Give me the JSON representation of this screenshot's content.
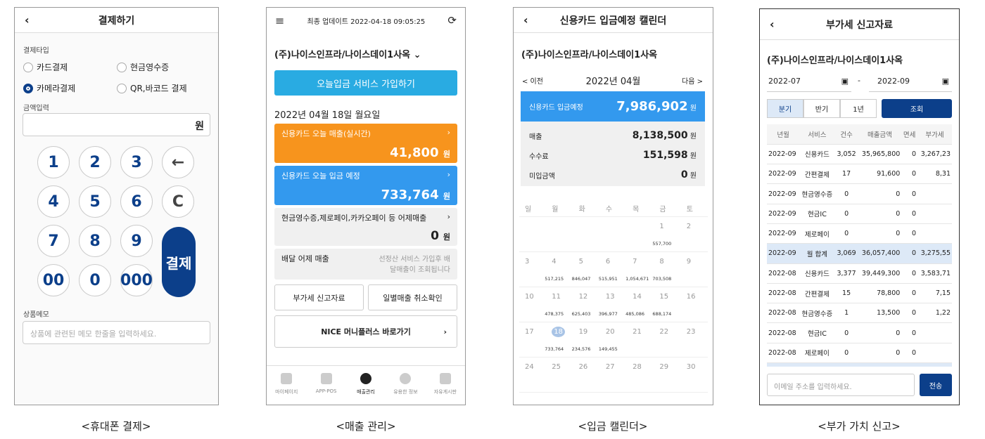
{
  "captions": [
    "<휴대폰 결제>",
    "<매출 관리>",
    "<입금 캘린더>",
    "<부가 가치 신고>"
  ],
  "p1": {
    "title": "결제하기",
    "payment_type_label": "결제타입",
    "options": [
      "카드결제",
      "현금영수증",
      "카메라결제",
      "QR,바코드 결제"
    ],
    "selected": "카메라결제",
    "amount_label": "금액입력",
    "amount_unit": "원",
    "keys": [
      "1",
      "2",
      "3",
      "←",
      "4",
      "5",
      "6",
      "C",
      "7",
      "8",
      "9",
      "00",
      "0",
      "000"
    ],
    "pay_label": "결제",
    "memo_label": "상품메모",
    "memo_placeholder": "상품에 관련된 메모 한줄을 입력하세요."
  },
  "p2": {
    "updated": "최종 업데이트 2022-04-18 09:05:25",
    "store": "(주)나이스인프라/나이스데이1사옥",
    "join_button": "오늘입금 서비스 가입하기",
    "date": "2022년 04월 18일 월요일",
    "today_sales": {
      "label": "신용카드 오늘 매출(실시간)",
      "value": "41,800",
      "unit": "원",
      "color": "#f7941d"
    },
    "today_deposit": {
      "label": "신용카드 오늘 입금 예정",
      "value": "733,764",
      "unit": "원",
      "color": "#3399ee"
    },
    "yesterday": {
      "label": "현금영수증,제로페이,카카오페이 등 어제매출",
      "value": "0",
      "unit": "원"
    },
    "delivery": {
      "label": "배달 어제 매출",
      "note": "선정산 서비스 가입후 배달매출이 조회됩니다"
    },
    "vat_button": "부가세 신고자료",
    "cancel_button": "일별매출 취소확인",
    "money_button": "NICE 머니플러스 바로가기",
    "nav": [
      "마이페이지",
      "APP-POS",
      "매출관리",
      "유용한 정보",
      "자유게시판"
    ],
    "nav_active": "매출관리"
  },
  "p3": {
    "title": "신용카드 입금예정 캘린더",
    "store": "(주)나이스인프라/나이스데이1사옥",
    "prev": "< 이전",
    "month": "2022년 04월",
    "next": "다음 >",
    "expected_label": "신용카드 입금예정",
    "expected_value": "7,986,902",
    "unit": "원",
    "rows": [
      {
        "label": "매출",
        "value": "8,138,500"
      },
      {
        "label": "수수료",
        "value": "151,598"
      },
      {
        "label": "미입금액",
        "value": "0"
      }
    ],
    "weekdays": [
      "일",
      "월",
      "화",
      "수",
      "목",
      "금",
      "토"
    ],
    "weeks": [
      [
        null,
        null,
        null,
        null,
        null,
        [
          "1",
          "557,700"
        ],
        [
          "2",
          ""
        ]
      ],
      [
        [
          "3",
          ""
        ],
        [
          "4",
          "517,215"
        ],
        [
          "5",
          "846,047"
        ],
        [
          "6",
          "515,951"
        ],
        [
          "7",
          "1,054,671"
        ],
        [
          "8",
          "703,508"
        ],
        [
          "9",
          ""
        ]
      ],
      [
        [
          "10",
          ""
        ],
        [
          "11",
          "478,375"
        ],
        [
          "12",
          "625,403"
        ],
        [
          "13",
          "396,977"
        ],
        [
          "14",
          "485,086"
        ],
        [
          "15",
          "688,174"
        ],
        [
          "16",
          ""
        ]
      ],
      [
        [
          "17",
          ""
        ],
        [
          "18",
          "733,764"
        ],
        [
          "19",
          "234,576"
        ],
        [
          "20",
          "149,455"
        ],
        [
          "21",
          ""
        ],
        [
          "22",
          ""
        ],
        [
          "23",
          ""
        ]
      ],
      [
        [
          "24",
          ""
        ],
        [
          "25",
          ""
        ],
        [
          "26",
          ""
        ],
        [
          "27",
          ""
        ],
        [
          "28",
          ""
        ],
        [
          "29",
          ""
        ],
        [
          "30",
          ""
        ]
      ]
    ],
    "today": "18"
  },
  "p4": {
    "title": "부가세 신고자료",
    "store": "(주)나이스인프라/나이스데이1사옥",
    "from": "2022-07",
    "to": "2022-09",
    "sep": "-",
    "tabs": [
      "분기",
      "반기",
      "1년"
    ],
    "active_tab": "분기",
    "search": "조회",
    "columns": [
      "년월",
      "서비스",
      "건수",
      "매출금액",
      "면세",
      "부가세"
    ],
    "rows": [
      [
        "2022-09",
        "신용카드",
        "3,052",
        "35,965,800",
        "0",
        "3,267,23"
      ],
      [
        "2022-09",
        "간편결제",
        "17",
        "91,600",
        "0",
        "8,31"
      ],
      [
        "2022-09",
        "현금영수증",
        "0",
        "0",
        "0",
        ""
      ],
      [
        "2022-09",
        "현금IC",
        "0",
        "0",
        "0",
        ""
      ],
      [
        "2022-09",
        "제로페이",
        "0",
        "0",
        "0",
        ""
      ],
      [
        "2022-09",
        "월 합계",
        "3,069",
        "36,057,400",
        "0",
        "3,275,55"
      ],
      [
        "2022-08",
        "신용카드",
        "3,377",
        "39,449,300",
        "0",
        "3,583,71"
      ],
      [
        "2022-08",
        "간편결제",
        "15",
        "78,800",
        "0",
        "7,15"
      ],
      [
        "2022-08",
        "현금영수증",
        "1",
        "13,500",
        "0",
        "1,22"
      ],
      [
        "2022-08",
        "현금IC",
        "0",
        "0",
        "0",
        ""
      ],
      [
        "2022-08",
        "제로페이",
        "0",
        "0",
        "0",
        ""
      ]
    ],
    "email_placeholder": "이메일 주소를 입력하세요.",
    "send": "전송"
  }
}
